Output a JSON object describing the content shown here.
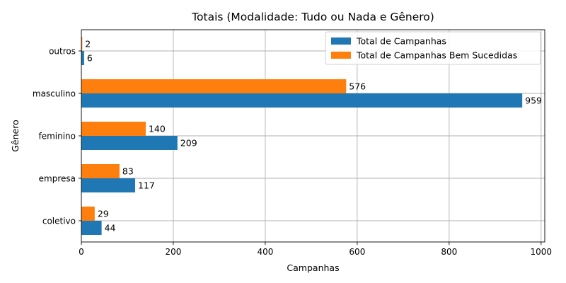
{
  "chart_data": {
    "type": "bar",
    "orientation": "horizontal",
    "title": "Totais (Modalidade: Tudo ou Nada e Gênero)",
    "xlabel": "Campanhas",
    "ylabel": "Gênero",
    "categories": [
      "coletivo",
      "empresa",
      "feminino",
      "masculino",
      "outros"
    ],
    "series": [
      {
        "name": "Total de Campanhas",
        "values": [
          44,
          117,
          209,
          959,
          6
        ],
        "color": "#1f77b4"
      },
      {
        "name": "Total de Campanhas Bem Sucedidas",
        "values": [
          29,
          83,
          140,
          576,
          2
        ],
        "color": "#ff7f0e"
      }
    ],
    "xlim": [
      0,
      1008
    ],
    "xticks": [
      0,
      200,
      400,
      600,
      800,
      1000
    ],
    "xtick_labels": [
      "0",
      "200",
      "400",
      "600",
      "800",
      "1000"
    ],
    "grid": true,
    "legend_position": "top-right",
    "show_data_labels": true
  }
}
